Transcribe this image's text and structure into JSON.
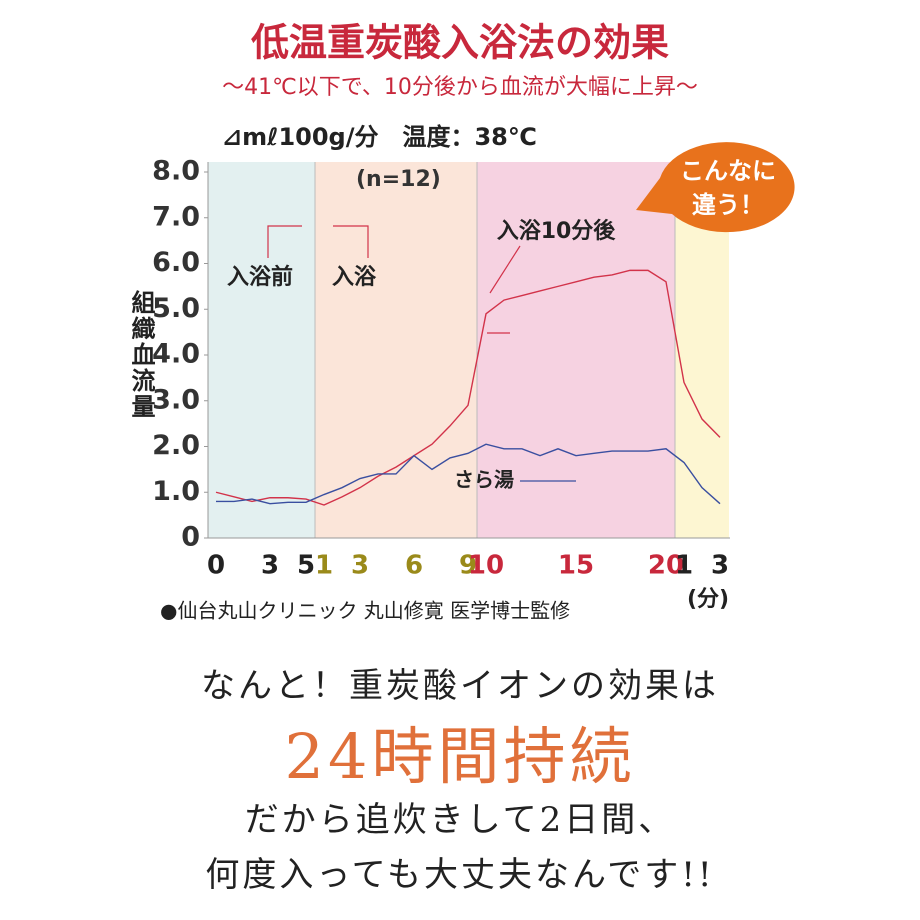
{
  "chart_data": {
    "type": "line",
    "title": "低温重炭酸入浴法の効果",
    "subtitle": "〜41℃以下で、10分後から血流が大幅に上昇〜",
    "unit_note": "⊿mℓ100g/分　温度：38℃",
    "sample_note": "(n=12)",
    "y_label": "組織血流量",
    "x_unit": "(分)",
    "badge": [
      "こんなに",
      "違う！"
    ],
    "annotations": [
      "入浴前",
      "入浴",
      "入浴10分後"
    ],
    "source": "●仙台丸山クリニック 丸山修寛 医学博士監修",
    "categories": [
      "0",
      null,
      null,
      "3",
      null,
      "5",
      "1",
      null,
      "3",
      null,
      null,
      "6",
      null,
      null,
      "9",
      "10",
      null,
      null,
      null,
      null,
      "15",
      null,
      null,
      null,
      null,
      "20",
      "1",
      null,
      "3"
    ],
    "regions": [
      {
        "start": 0,
        "end": 5,
        "color": "#e3f0f0",
        "label_color": "#222222"
      },
      {
        "start": 6,
        "end": 14,
        "color": "#fbe5d9",
        "label_color": "#9a8a1a"
      },
      {
        "start": 15,
        "end": 25,
        "color": "#f6d2e1",
        "label_color": "#c8283c"
      },
      {
        "start": 26,
        "end": 28,
        "color": "#fdf6d2",
        "label_color": "#222222"
      }
    ],
    "series": [
      {
        "color": "#d2334a",
        "values": [
          1.0,
          0.9,
          0.8,
          0.88,
          0.88,
          0.85,
          0.72,
          0.9,
          1.1,
          1.35,
          1.55,
          1.8,
          2.05,
          2.45,
          2.9,
          4.9,
          5.2,
          5.3,
          5.4,
          5.5,
          5.6,
          5.7,
          5.75,
          5.85,
          5.85,
          5.6,
          3.4,
          2.6,
          2.2
        ]
      },
      {
        "name": "さら湯",
        "color": "#3a4fa0",
        "values": [
          0.8,
          0.8,
          0.85,
          0.75,
          0.78,
          0.78,
          0.95,
          1.1,
          1.3,
          1.4,
          1.4,
          1.8,
          1.5,
          1.75,
          1.85,
          2.05,
          1.95,
          1.95,
          1.8,
          1.95,
          1.8,
          1.85,
          1.9,
          1.9,
          1.9,
          1.95,
          1.65,
          1.1,
          0.75
        ]
      }
    ],
    "ylim": [
      0,
      8
    ],
    "yticks": [
      0,
      {
        "value": 1,
        "label": "1.0"
      },
      {
        "value": 2,
        "label": "2.0"
      },
      {
        "value": 3,
        "label": "3.0"
      },
      {
        "value": 4,
        "label": "4.0"
      },
      {
        "value": 5,
        "label": "5.0"
      },
      {
        "value": 6,
        "label": "6.0"
      },
      {
        "value": 7,
        "label": "7.0"
      },
      {
        "value": 8,
        "label": "8.0"
      }
    ]
  },
  "message": {
    "line1": "なんと！重炭酸イオンの効果は",
    "highlight": "24時間持続",
    "line2": "だから追炊きして2日間、",
    "line3": "何度入っても大丈夫なんです!!"
  }
}
